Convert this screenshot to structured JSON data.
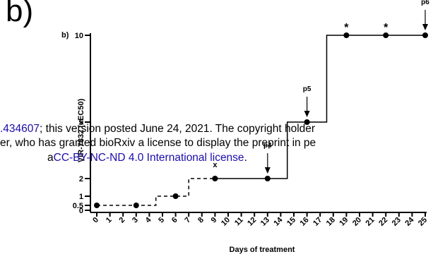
{
  "panel_label_large": "b)",
  "watermark": {
    "line1_link": ".434607",
    "line1_text": "; this version posted June 24, 2021. The copyright holder",
    "line2_text": "er, who has granted bioRxiv a license to display the preprint in pe",
    "line3_prefix": "a",
    "line3_link": "CC-BY-NC-ND 4.0 International license",
    "line3_suffix": "."
  },
  "chart_data": {
    "type": "line",
    "panel_label": "b)",
    "xlabel": "Days of treatment",
    "ylabel": "VIR-7832 (xEC50)",
    "xlim": [
      0,
      25
    ],
    "x_ticks": [
      0,
      1,
      2,
      3,
      4,
      5,
      6,
      7,
      8,
      9,
      10,
      11,
      12,
      13,
      14,
      15,
      16,
      17,
      18,
      19,
      20,
      21,
      22,
      23,
      24,
      25
    ],
    "y_ticks": [
      {
        "value": 0,
        "label": "0"
      },
      {
        "value": 0.5,
        "label": "0.5"
      },
      {
        "value": 1,
        "label": "1"
      },
      {
        "value": 2,
        "label": "2"
      },
      {
        "value": 5,
        "label": "5"
      },
      {
        "value": 10,
        "label": "10"
      }
    ],
    "series": [
      {
        "style": "dashed",
        "steps": [
          [
            0,
            0.5
          ],
          [
            4.5,
            0.5
          ],
          [
            4.5,
            1
          ],
          [
            7,
            1
          ],
          [
            7,
            2
          ],
          [
            9,
            2
          ]
        ],
        "points": [
          {
            "x": 0,
            "y": 0.5
          },
          {
            "x": 3,
            "y": 0.5
          },
          {
            "x": 6,
            "y": 1
          },
          {
            "x": 9,
            "y": 2
          }
        ]
      },
      {
        "style": "solid",
        "steps": [
          [
            9,
            2
          ],
          [
            14.5,
            2
          ],
          [
            14.5,
            5
          ],
          [
            17.5,
            5
          ],
          [
            17.5,
            10
          ],
          [
            25,
            10
          ]
        ],
        "points": [
          {
            "x": 13,
            "y": 2
          },
          {
            "x": 16,
            "y": 5
          },
          {
            "x": 19,
            "y": 10
          },
          {
            "x": 22,
            "y": 10
          },
          {
            "x": 25,
            "y": 10
          }
        ]
      }
    ],
    "annotations": [
      {
        "text": "p4",
        "x": 13,
        "y": 2,
        "arrow": true
      },
      {
        "text": "p5",
        "x": 16,
        "y": 5,
        "arrow": true
      },
      {
        "text": "p6",
        "x": 25,
        "y": 10,
        "arrow": true
      },
      {
        "text": "x",
        "x": 9,
        "y": 2,
        "arrow": false
      },
      {
        "text": "*",
        "x": 19,
        "y": 10,
        "arrow": false
      },
      {
        "text": "*",
        "x": 22,
        "y": 10,
        "arrow": false
      }
    ]
  }
}
